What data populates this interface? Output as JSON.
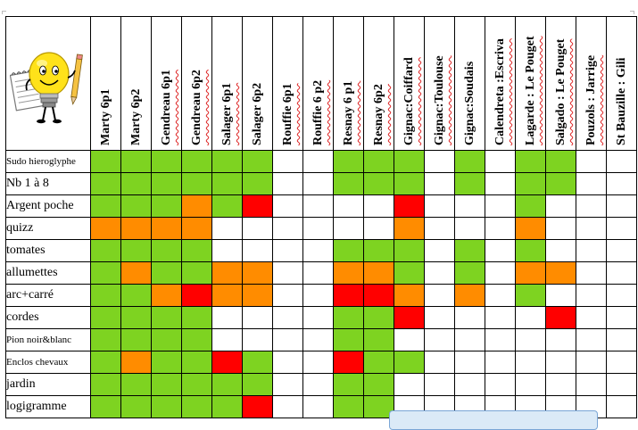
{
  "columns": [
    "Marty 6p1",
    "Marty 6p2",
    "Gendreau 6p1",
    "Gendreau 6p2",
    "Salager 6p1",
    "Salager 6p2",
    "Rouffie 6p1",
    "Rouffie 6 p2",
    "Resnay 6 p1",
    "Resnay 6p2",
    "Gignac:Coiffard",
    "Gignac:Toulouse",
    "Gignac:Soudais",
    "Calendreta :Escriva",
    "Lagarde : Le Pouget",
    "Salgado : Le Pouget",
    "Pouzols : Jarrige",
    "St Bauzille : Gili"
  ],
  "column_spellcheck": [
    false,
    false,
    true,
    true,
    true,
    false,
    true,
    true,
    true,
    true,
    true,
    true,
    false,
    true,
    true,
    true,
    true,
    false
  ],
  "rows": [
    {
      "label": "Sudo hieroglyphe",
      "size": "small",
      "cells": [
        "g",
        "g",
        "g",
        "g",
        "g",
        "g",
        "w",
        "w",
        "g",
        "g",
        "g",
        "w",
        "g",
        "w",
        "g",
        "g",
        "w",
        "w"
      ]
    },
    {
      "label": "Nb 1 à 8",
      "size": "normal",
      "cells": [
        "g",
        "g",
        "g",
        "g",
        "g",
        "g",
        "w",
        "w",
        "g",
        "g",
        "g",
        "w",
        "g",
        "w",
        "g",
        "g",
        "w",
        "w"
      ]
    },
    {
      "label": "Argent poche",
      "size": "normal",
      "cells": [
        "g",
        "g",
        "g",
        "o",
        "g",
        "r",
        "w",
        "w",
        "w",
        "w",
        "r",
        "w",
        "w",
        "w",
        "g",
        "w",
        "w",
        "w"
      ]
    },
    {
      "label": "quizz",
      "size": "normal",
      "cells": [
        "o",
        "o",
        "o",
        "o",
        "w",
        "w",
        "w",
        "w",
        "w",
        "w",
        "o",
        "w",
        "w",
        "w",
        "o",
        "w",
        "w",
        "w"
      ]
    },
    {
      "label": "tomates",
      "size": "normal",
      "cells": [
        "g",
        "g",
        "g",
        "g",
        "w",
        "w",
        "w",
        "w",
        "g",
        "g",
        "g",
        "w",
        "g",
        "w",
        "g",
        "w",
        "w",
        "w"
      ]
    },
    {
      "label": "allumettes",
      "size": "normal",
      "cells": [
        "g",
        "o",
        "g",
        "g",
        "o",
        "o",
        "w",
        "w",
        "o",
        "o",
        "g",
        "w",
        "g",
        "w",
        "o",
        "o",
        "w",
        "w"
      ]
    },
    {
      "label": "arc+carré",
      "size": "normal",
      "cells": [
        "g",
        "g",
        "o",
        "r",
        "o",
        "o",
        "w",
        "w",
        "r",
        "r",
        "o",
        "w",
        "o",
        "w",
        "g",
        "w",
        "w",
        "w"
      ]
    },
    {
      "label": "cordes",
      "size": "normal",
      "cells": [
        "g",
        "g",
        "g",
        "g",
        "w",
        "w",
        "w",
        "w",
        "g",
        "g",
        "r",
        "w",
        "w",
        "w",
        "w",
        "r",
        "w",
        "w"
      ]
    },
    {
      "label": "Pion noir&blanc",
      "size": "small",
      "cells": [
        "g",
        "g",
        "g",
        "g",
        "w",
        "w",
        "w",
        "w",
        "g",
        "g",
        "w",
        "w",
        "w",
        "w",
        "w",
        "w",
        "w",
        "w"
      ]
    },
    {
      "label": "Enclos chevaux",
      "size": "small",
      "cells": [
        "g",
        "o",
        "g",
        "g",
        "r",
        "g",
        "w",
        "w",
        "r",
        "g",
        "g",
        "w",
        "w",
        "w",
        "w",
        "w",
        "w",
        "w"
      ]
    },
    {
      "label": "jardin",
      "size": "normal",
      "cells": [
        "g",
        "g",
        "g",
        "g",
        "g",
        "g",
        "w",
        "w",
        "g",
        "g",
        "w",
        "w",
        "w",
        "w",
        "w",
        "w",
        "w",
        "w"
      ]
    },
    {
      "label": "logigramme",
      "size": "normal",
      "cells": [
        "g",
        "g",
        "g",
        "g",
        "g",
        "r",
        "w",
        "w",
        "g",
        "g",
        "w",
        "w",
        "w",
        "w",
        "w",
        "w",
        "w",
        "w"
      ]
    }
  ],
  "colors": {
    "green": "#7ed321",
    "orange": "#ff8c00",
    "red": "#ff0000",
    "white": "#ffffff",
    "callout_fill": "#dbeaf7"
  },
  "icons": {
    "corner": "smiley-lightbulb-icon"
  }
}
